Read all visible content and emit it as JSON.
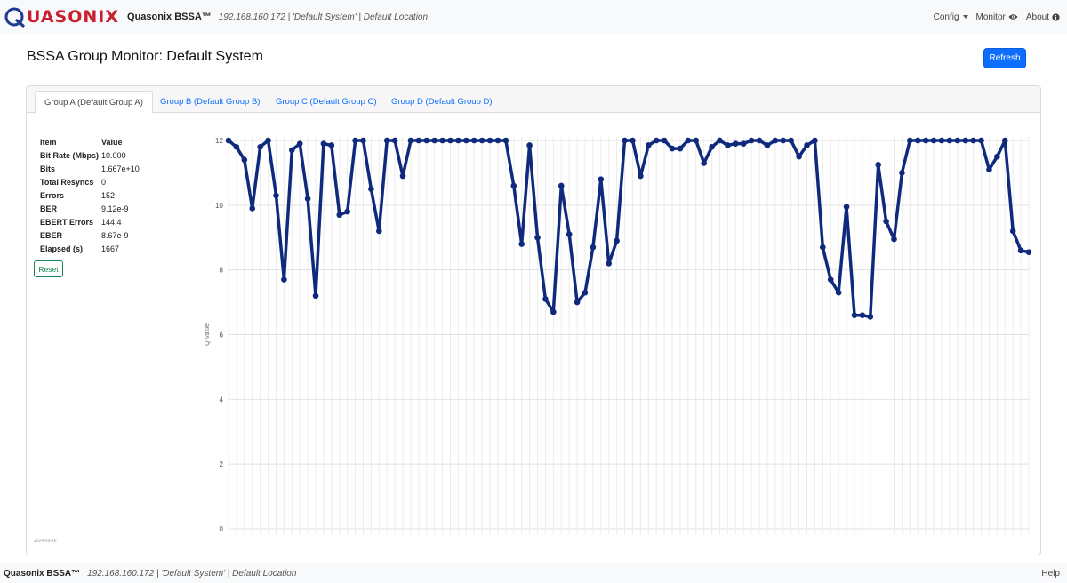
{
  "navbar": {
    "logo_text": "UASONIX",
    "brand": "Quasonix BSSA™",
    "context": "192.168.160.172 | 'Default System' | Default Location",
    "config_label": "Config",
    "monitor_label": "Monitor",
    "about_label": "About"
  },
  "header": {
    "title": "BSSA Group Monitor: Default System",
    "refresh_label": "Refresh"
  },
  "tabs": [
    {
      "label": "Group A (Default Group A)",
      "active": true
    },
    {
      "label": "Group B (Default Group B)",
      "active": false
    },
    {
      "label": "Group C (Default Group C)",
      "active": false
    },
    {
      "label": "Group D (Default Group D)",
      "active": false
    }
  ],
  "stats": {
    "header_item": "Item",
    "header_value": "Value",
    "rows": [
      {
        "item": "Bit Rate (Mbps)",
        "value": "10.000"
      },
      {
        "item": "Bits",
        "value": "1.667e+10"
      },
      {
        "item": "Total Resyncs",
        "value": "0"
      },
      {
        "item": "Errors",
        "value": "152"
      },
      {
        "item": "BER",
        "value": "9.12e-9"
      },
      {
        "item": "EBERT Errors",
        "value": "144.4"
      },
      {
        "item": "EBER",
        "value": "8.67e-9"
      },
      {
        "item": "Elapsed (s)",
        "value": "1667"
      }
    ],
    "reset_label": "Reset"
  },
  "date_stamp": "2024-09-16",
  "chart_data": {
    "type": "line",
    "ylabel": "Q Value",
    "ylim": [
      0,
      12
    ],
    "yticks": [
      0,
      2,
      4,
      6,
      8,
      10,
      12
    ],
    "line_color": "#0f2a7d",
    "values": [
      12.0,
      11.8,
      11.4,
      9.9,
      11.8,
      12.0,
      10.3,
      7.7,
      11.7,
      11.9,
      10.2,
      7.2,
      11.9,
      11.85,
      9.7,
      9.8,
      12.0,
      12.0,
      10.5,
      9.2,
      12.0,
      12.0,
      10.9,
      12.0,
      12.0,
      12.0,
      12.0,
      12.0,
      12.0,
      12.0,
      12.0,
      12.0,
      12.0,
      12.0,
      12.0,
      12.0,
      10.6,
      8.8,
      11.85,
      9.0,
      7.1,
      6.7,
      10.6,
      9.1,
      7.0,
      7.3,
      8.7,
      10.8,
      8.2,
      8.9,
      12.0,
      12.0,
      10.9,
      11.85,
      12.0,
      12.0,
      11.75,
      11.75,
      12.0,
      12.0,
      11.3,
      11.8,
      12.0,
      11.85,
      11.9,
      11.9,
      12.0,
      12.0,
      11.85,
      12.0,
      12.0,
      12.0,
      11.5,
      11.85,
      12.0,
      8.7,
      7.7,
      7.3,
      9.95,
      6.6,
      6.6,
      6.55,
      11.25,
      9.5,
      8.95,
      11.0,
      12.0,
      12.0,
      12.0,
      12.0,
      12.0,
      12.0,
      12.0,
      12.0,
      12.0,
      12.0,
      11.1,
      11.5,
      12.0,
      9.2,
      8.6,
      8.55
    ]
  },
  "footer": {
    "brand": "Quasonix BSSA™",
    "context": "192.168.160.172 | 'Default System' | Default Location",
    "help_label": "Help"
  }
}
